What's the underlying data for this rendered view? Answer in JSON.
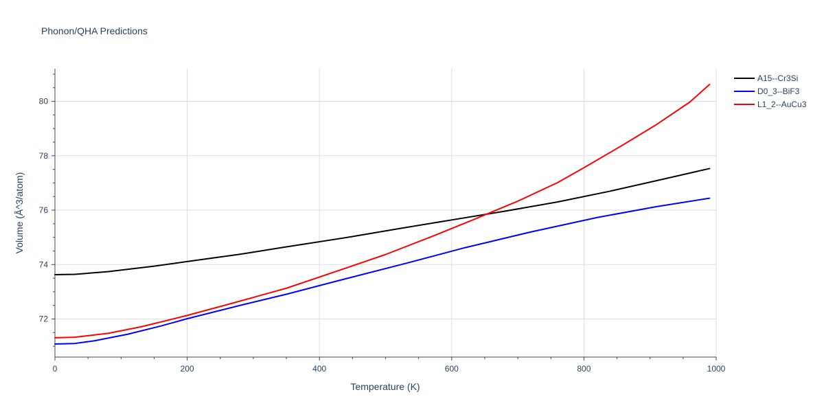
{
  "chart_data": {
    "type": "line",
    "title": "Phonon/QHA Predictions",
    "xlabel": "Temperature (K)",
    "ylabel": "Volume (Å^3/atom)",
    "xlim": [
      0,
      1000
    ],
    "ylim": [
      70.6,
      81.2
    ],
    "x_ticks": [
      0,
      200,
      400,
      600,
      800,
      1000
    ],
    "y_ticks": [
      72,
      74,
      76,
      78,
      80
    ],
    "grid": true,
    "legend_position": "top-right",
    "series": [
      {
        "name": "A15--Cr3Si",
        "color": "#000000",
        "x": [
          0,
          30,
          80,
          150,
          200,
          280,
          350,
          440,
          520,
          600,
          680,
          760,
          840,
          920,
          990
        ],
        "y": [
          73.63,
          73.64,
          73.74,
          73.94,
          74.11,
          74.38,
          74.65,
          74.99,
          75.32,
          75.64,
          75.96,
          76.3,
          76.7,
          77.14,
          77.53
        ]
      },
      {
        "name": "D0_3--BiF3",
        "color": "#0000ff",
        "x": [
          0,
          30,
          60,
          110,
          160,
          200,
          280,
          350,
          440,
          530,
          620,
          720,
          820,
          910,
          990
        ],
        "y": [
          71.08,
          71.1,
          71.2,
          71.44,
          71.74,
          72.01,
          72.5,
          72.91,
          73.48,
          74.04,
          74.62,
          75.2,
          75.73,
          76.13,
          76.44
        ]
      },
      {
        "name": "L1_2--AuCu3",
        "color": "#ff0000",
        "x": [
          0,
          30,
          80,
          130,
          200,
          270,
          350,
          440,
          500,
          570,
          630,
          700,
          760,
          800,
          860,
          910,
          960,
          990
        ],
        "y": [
          71.31,
          71.33,
          71.47,
          71.71,
          72.13,
          72.59,
          73.13,
          73.87,
          74.37,
          75.03,
          75.62,
          76.33,
          77.01,
          77.56,
          78.41,
          79.15,
          79.97,
          80.62
        ]
      }
    ]
  }
}
